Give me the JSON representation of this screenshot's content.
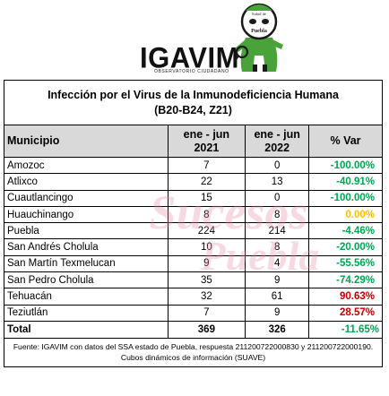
{
  "logo": {
    "wordmark": "IGAVIM",
    "subtitle": "OBSERVATORIO CIUDADANO",
    "mascot_top_text": "Salud de",
    "mascot_bottom_text": "Puebla",
    "colors": {
      "green": "#4aa33a",
      "dark": "#1a1a1a"
    }
  },
  "watermark": {
    "line1": "Sucesos",
    "line2": "Puebla",
    "color": "#e88aa6"
  },
  "table": {
    "title_line1": "Infección por el Virus de la Inmunodeficiencia Humana",
    "title_line2": "(B20-B24, Z21)",
    "headers": {
      "municipio": "Municipio",
      "col2_line1": "ene - jun",
      "col2_line2": "2021",
      "col3_line1": "ene - jun",
      "col3_line2": "2022",
      "var": "% Var"
    },
    "rows": [
      {
        "municipio": "Amozoc",
        "y2021": "7",
        "y2022": "0",
        "var": "-100.00%",
        "color": "green"
      },
      {
        "municipio": "Atlixco",
        "y2021": "22",
        "y2022": "13",
        "var": "-40.91%",
        "color": "green"
      },
      {
        "municipio": "Cuautlancingo",
        "y2021": "15",
        "y2022": "0",
        "var": "-100.00%",
        "color": "green"
      },
      {
        "municipio": "Huauchinango",
        "y2021": "8",
        "y2022": "8",
        "var": "0.00%",
        "color": "yellow"
      },
      {
        "municipio": "Puebla",
        "y2021": "224",
        "y2022": "214",
        "var": "-4.46%",
        "color": "green"
      },
      {
        "municipio": "San Andrés Cholula",
        "y2021": "10",
        "y2022": "8",
        "var": "-20.00%",
        "color": "green"
      },
      {
        "municipio": "San Martín Texmelucan",
        "y2021": "9",
        "y2022": "4",
        "var": "-55.56%",
        "color": "green"
      },
      {
        "municipio": "San Pedro Cholula",
        "y2021": "35",
        "y2022": "9",
        "var": "-74.29%",
        "color": "green"
      },
      {
        "municipio": "Tehuacán",
        "y2021": "32",
        "y2022": "61",
        "var": "90.63%",
        "color": "red"
      },
      {
        "municipio": "Teziutlán",
        "y2021": "7",
        "y2022": "9",
        "var": "28.57%",
        "color": "red"
      }
    ],
    "total": {
      "label": "Total",
      "y2021": "369",
      "y2022": "326",
      "var": "-11.65%",
      "color": "green"
    },
    "source": "Fuente: IGAVIM con datos del SSA estado de Puebla, respuesta 211200722000830 y 211200722000190. Cubos dinámicos de información (SUAVE)"
  }
}
